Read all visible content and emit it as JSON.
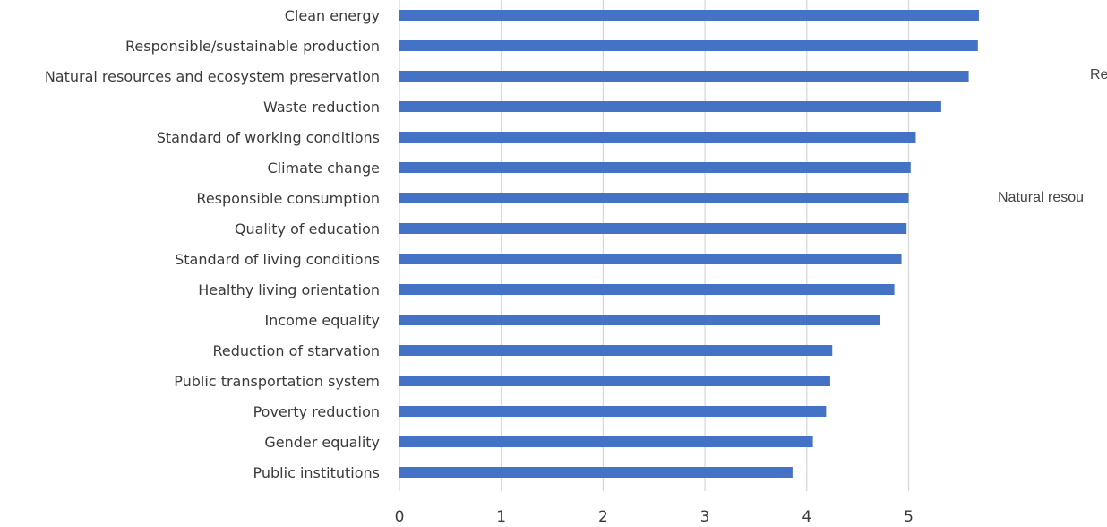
{
  "chart_data": {
    "type": "bar",
    "orientation": "horizontal",
    "categories": [
      "Clean energy",
      "Responsible/sustainable production",
      "Natural resources and ecosystem preservation",
      "Waste reduction",
      "Standard of working conditions",
      "Climate change",
      "Responsible consumption",
      "Quality of education",
      "Standard of living conditions",
      "Healthy living orientation",
      "Income equality",
      "Reduction of starvation",
      "Public transportation system",
      "Poverty reduction",
      "Gender equality",
      "Public institutions"
    ],
    "values": [
      5.69,
      5.68,
      5.59,
      5.32,
      5.07,
      5.02,
      5.0,
      4.98,
      4.93,
      4.86,
      4.72,
      4.25,
      4.23,
      4.19,
      4.06,
      3.86
    ],
    "xlim": [
      0,
      5.7
    ],
    "xticks": [
      "0",
      "1",
      "2",
      "3",
      "4",
      "5"
    ],
    "grid": true,
    "bar_color": "#4472c4",
    "grid_color": "#d9d9d9"
  },
  "side_notes": {
    "right_top": "Re",
    "right_mid": "Natural resou"
  }
}
